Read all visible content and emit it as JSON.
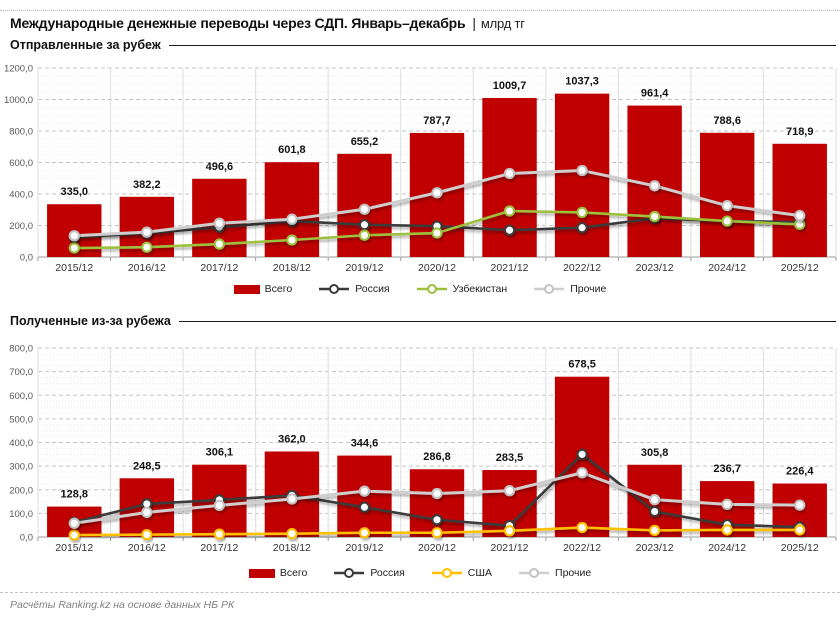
{
  "page": {
    "title": "Международные денежные переводы через СДП. Январь–декабрь",
    "title_separator": "|",
    "title_unit": "млрд тг",
    "footer": "Расчёты Ranking.kz на основе данных НБ РК"
  },
  "colors": {
    "total": "#c00000",
    "russia": "#3a3a3a",
    "uzbekistan": "#9dc03c",
    "usa": "#ffc000",
    "others": "#cfcdcd",
    "others_marker": "#c4c2c2",
    "grid_major": "#c3c3c3",
    "grid_minor": "#e8e8e8",
    "grid_vertical": "#dedede",
    "axis": "#9a9a9a",
    "tick_label": "#595959",
    "x_label": "#333333",
    "bar_label": "#111111"
  },
  "chart_data": [
    {
      "type": "bar",
      "section_title": "Отправленные за рубеж",
      "categories": [
        "2015/12",
        "2016/12",
        "2017/12",
        "2018/12",
        "2019/12",
        "2020/12",
        "2021/12",
        "2022/12",
        "2023/12",
        "2024/12",
        "2025/12"
      ],
      "ylim": [
        0,
        1200
      ],
      "major_step": 200,
      "minor_step": 50,
      "yticks": [
        {
          "v": 0,
          "label": "0,0"
        },
        {
          "v": 200,
          "label": "200,0"
        },
        {
          "v": 400,
          "label": "400,0"
        },
        {
          "v": 600,
          "label": "600,0"
        },
        {
          "v": 800,
          "label": "800,0"
        },
        {
          "v": 1000,
          "label": "1000,0"
        },
        {
          "v": 1200,
          "label": "1200,0"
        }
      ],
      "bar_series": {
        "name": "Всего",
        "color_key": "total",
        "values": [
          335.0,
          382.2,
          496.6,
          601.8,
          655.2,
          787.7,
          1009.7,
          1037.3,
          961.4,
          788.6,
          718.9
        ],
        "labels": [
          "335,0",
          "382,2",
          "496,6",
          "601,8",
          "655,2",
          "787,7",
          "1009,7",
          "1037,3",
          "961,4",
          "788,6",
          "718,9"
        ]
      },
      "line_series": [
        {
          "name": "Россия",
          "color_key": "russia",
          "values": [
            125,
            150,
            190,
            228,
            205,
            196,
            170,
            186,
            246,
            228,
            222
          ]
        },
        {
          "name": "Узбекистан",
          "color_key": "uzbekistan",
          "values": [
            57,
            62,
            82,
            108,
            138,
            152,
            292,
            283,
            257,
            228,
            207
          ]
        },
        {
          "name": "Прочие",
          "color_key": "others",
          "marker_key": "others_marker",
          "values": [
            135,
            158,
            214,
            240,
            303,
            408,
            530,
            549,
            452,
            326,
            263
          ]
        }
      ],
      "note": "line values estimated from gridlines"
    },
    {
      "type": "bar",
      "section_title": "Полученные из-за рубежа",
      "categories": [
        "2015/12",
        "2016/12",
        "2017/12",
        "2018/12",
        "2019/12",
        "2020/12",
        "2021/12",
        "2022/12",
        "2023/12",
        "2024/12",
        "2025/12"
      ],
      "ylim": [
        0,
        800
      ],
      "major_step": 100,
      "minor_step": 25,
      "yticks": [
        {
          "v": 0,
          "label": "0,0"
        },
        {
          "v": 100,
          "label": "100,0"
        },
        {
          "v": 200,
          "label": "200,0"
        },
        {
          "v": 300,
          "label": "300,0"
        },
        {
          "v": 400,
          "label": "400,0"
        },
        {
          "v": 500,
          "label": "500,0"
        },
        {
          "v": 600,
          "label": "600,0"
        },
        {
          "v": 700,
          "label": "700,0"
        },
        {
          "v": 800,
          "label": "800,0"
        }
      ],
      "bar_series": {
        "name": "Всего",
        "color_key": "total",
        "values": [
          128.8,
          248.5,
          306.1,
          362.0,
          344.6,
          286.8,
          283.5,
          678.5,
          305.8,
          236.7,
          226.4
        ],
        "labels": [
          "128,8",
          "248,5",
          "306,1",
          "362,0",
          "344,6",
          "286,8",
          "283,5",
          "678,5",
          "305,8",
          "236,7",
          "226,4"
        ]
      },
      "line_series": [
        {
          "name": "Россия",
          "color_key": "russia",
          "values": [
            62,
            140,
            157,
            176,
            126,
            73,
            48,
            350,
            108,
            52,
            42
          ]
        },
        {
          "name": "США",
          "color_key": "usa",
          "values": [
            8,
            10,
            12,
            14,
            18,
            18,
            26,
            40,
            28,
            30,
            30
          ]
        },
        {
          "name": "Прочие",
          "color_key": "others",
          "marker_key": "others_marker",
          "values": [
            58,
            104,
            134,
            161,
            194,
            184,
            196,
            272,
            158,
            138,
            135
          ]
        }
      ],
      "note": "line values estimated from gridlines"
    }
  ]
}
